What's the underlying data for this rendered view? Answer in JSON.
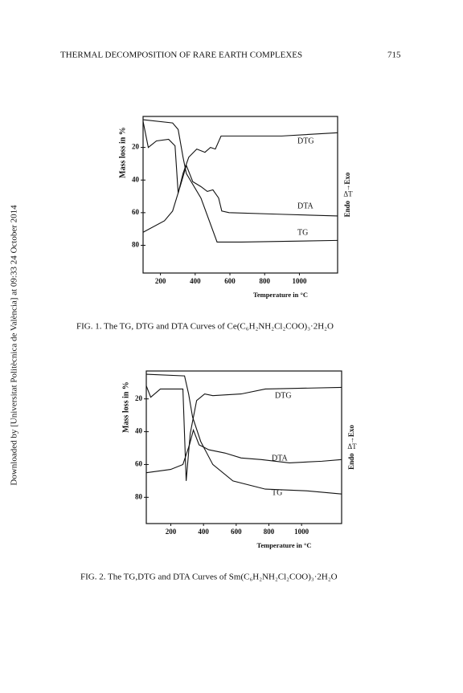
{
  "header": {
    "title": "THERMAL DECOMPOSITION OF RARE EARTH COMPLEXES",
    "page": "715"
  },
  "sidebar": "Downloaded by [Universitat Politècnica de València] at 09:33 24 October 2014",
  "chart_data": [
    {
      "type": "line",
      "caption": "FIG. 1. The TG, DTG and DTA Curves of Ce(C₆H₂NH₂Cl₂COO)₃·2H₂O",
      "x_label": "Temperature in °C",
      "y_label": "Mass loss in %",
      "right_label": "Endo← →Exo",
      "right_symbol": "ΔT",
      "xlim": [
        100,
        1220
      ],
      "xticks": [
        200,
        400,
        600,
        800,
        1000
      ],
      "ylim": [
        1,
        97
      ],
      "y_reversed": true,
      "yticks": [
        20,
        40,
        60,
        80
      ],
      "series": [
        {
          "name": "DTG",
          "color": "#111111",
          "x": [
            100,
            130,
            177,
            247,
            284,
            302,
            330,
            363,
            409,
            456,
            488,
            516,
            549,
            898,
            1220
          ],
          "values": [
            4,
            20,
            16,
            15,
            19,
            48,
            36,
            26,
            21,
            23,
            20,
            21,
            13,
            13,
            11
          ]
        },
        {
          "name": "DTA",
          "color": "#111111",
          "x": [
            100,
            223,
            270,
            316,
            349,
            386,
            433,
            470,
            502,
            535,
            553,
            595,
            898,
            1220
          ],
          "values": [
            72,
            65,
            59,
            43,
            31,
            41,
            44,
            47,
            46,
            51,
            59,
            60,
            61,
            62
          ]
        },
        {
          "name": "TG",
          "color": "#111111",
          "x": [
            100,
            270,
            302,
            330,
            349,
            433,
            526,
            665,
            1220
          ],
          "values": [
            3,
            5,
            9,
            26,
            36,
            51,
            78,
            78,
            77
          ]
        }
      ]
    },
    {
      "type": "line",
      "caption": "FIG. 2. The TG,DTG and DTA Curves of Sm(C₆H₂NH₂Cl₂COO)₃·2H₂O",
      "x_label": "Temperature in °C",
      "y_label": "Mass loss in %",
      "right_label": "Endo← →Exo",
      "right_symbol": "ΔT",
      "xlim": [
        50,
        1245
      ],
      "xticks": [
        200,
        400,
        600,
        800,
        1000
      ],
      "ylim": [
        3,
        96
      ],
      "y_reversed": true,
      "yticks": [
        20,
        40,
        60,
        80
      ],
      "series": [
        {
          "name": "DTG",
          "color": "#111111",
          "x": [
            50,
            77,
            136,
            274,
            294,
            319,
            358,
            407,
            457,
            630,
            778,
            1245
          ],
          "values": [
            12,
            19,
            14,
            14,
            70,
            41,
            21,
            17,
            18,
            17,
            14,
            13
          ]
        },
        {
          "name": "DTA",
          "color": "#111111",
          "x": [
            50,
            199,
            274,
            314,
            338,
            373,
            432,
            531,
            630,
            753,
            926,
            1124,
            1245
          ],
          "values": [
            65,
            63,
            60,
            48,
            39,
            48,
            51,
            53,
            56,
            57,
            59,
            58,
            57
          ]
        },
        {
          "name": "TG",
          "color": "#111111",
          "x": [
            50,
            284,
            309,
            333,
            383,
            457,
            580,
            778,
            1025,
            1245
          ],
          "values": [
            5,
            6,
            17,
            31,
            46,
            60,
            70,
            75,
            76,
            78
          ]
        }
      ]
    }
  ]
}
